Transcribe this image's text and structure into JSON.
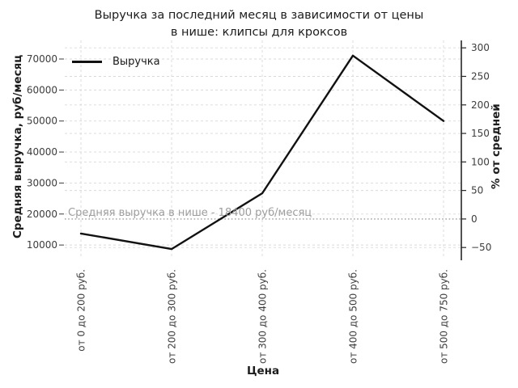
{
  "title": {
    "line1": "Выручка за последний месяц в зависимости от цены",
    "line2": "в нише: клипсы для кроксов"
  },
  "legend": {
    "label": "Выручка"
  },
  "axes": {
    "xlabel": "Цена",
    "ylabel_left": "Средняя выручка, руб/месяц",
    "ylabel_right": "% от средней"
  },
  "mean_label": "Средняя выручка в нише - 18400 руб/месяц",
  "chart_data": {
    "type": "line",
    "title": "Выручка за последний месяц в зависимости от цены в нише: клипсы для кроксов",
    "categories": [
      "от 0 до 200 руб.",
      "от 200 до 300 руб.",
      "от 300 до 400 руб.",
      "от 400 до 500 руб.",
      "от 500 до 750 руб."
    ],
    "series": [
      {
        "name": "Выручка",
        "values": [
          13700,
          8700,
          26700,
          71100,
          50000
        ],
        "color": "#111111"
      }
    ],
    "percent_of_mean": [
      -25.5,
      -52.7,
      45.1,
      286.4,
      171.7
    ],
    "xlabel": "Цена",
    "ylabel_left": "Средняя выручка, руб/месяц",
    "ylabel_right": "% от средней",
    "yticks_left": [
      10000,
      20000,
      30000,
      40000,
      50000,
      60000,
      70000
    ],
    "yticks_right": [
      -50,
      0,
      50,
      100,
      150,
      200,
      250,
      300
    ],
    "ylim_left": [
      5600,
      76000
    ],
    "ylim_right": [
      -70,
      313
    ],
    "mean_line": {
      "value": 18400,
      "label": "Средняя выручка в нише - 18400 руб/месяц"
    },
    "legend_position": "upper left",
    "grid": true,
    "colors": {
      "line": "#111111",
      "grid": "#d9d9d9",
      "mean": "#9e9e9e",
      "tick": "#3d3d3d",
      "spine": "#262626",
      "text": "#1c1c1c"
    }
  }
}
